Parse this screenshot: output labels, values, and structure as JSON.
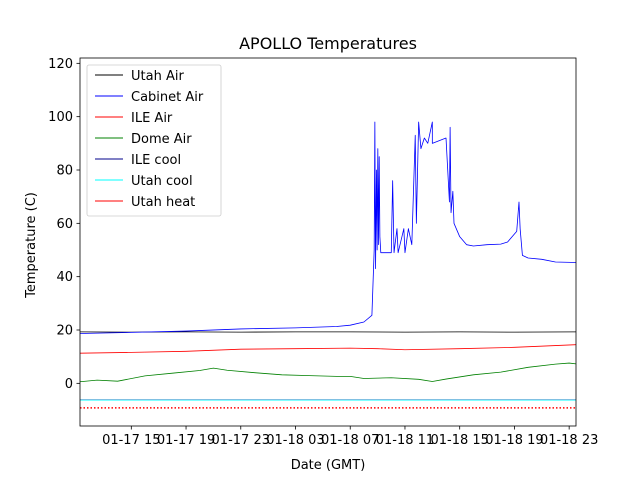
{
  "chart_data": {
    "type": "line",
    "title": "APOLLO Temperatures",
    "xlabel": "Date (GMT)",
    "ylabel": "Temperature (C)",
    "xlim": [
      "2023-01-17 11:15",
      "2023-01-18 23:30"
    ],
    "ylim": [
      -16,
      122
    ],
    "xticks": [
      {
        "t": "2023-01-17 15:00",
        "label": "01-17 15"
      },
      {
        "t": "2023-01-17 19:00",
        "label": "01-17 19"
      },
      {
        "t": "2023-01-17 23:00",
        "label": "01-17 23"
      },
      {
        "t": "2023-01-18 03:00",
        "label": "01-18 03"
      },
      {
        "t": "2023-01-18 07:00",
        "label": "01-18 07"
      },
      {
        "t": "2023-01-18 11:00",
        "label": "01-18 11"
      },
      {
        "t": "2023-01-18 15:00",
        "label": "01-18 15"
      },
      {
        "t": "2023-01-18 19:00",
        "label": "01-18 19"
      },
      {
        "t": "2023-01-18 23:00",
        "label": "01-18 23"
      }
    ],
    "yticks": [
      0,
      20,
      40,
      60,
      80,
      100,
      120
    ],
    "grid": false,
    "legend_position": "top-left",
    "series": [
      {
        "name": "Utah Air",
        "color": "#000000",
        "points": [
          [
            "2023-01-17 11:15",
            19.3
          ],
          [
            "2023-01-17 15:00",
            19.2
          ],
          [
            "2023-01-17 19:00",
            19.3
          ],
          [
            "2023-01-17 23:00",
            19.2
          ],
          [
            "2023-01-18 03:00",
            19.3
          ],
          [
            "2023-01-18 07:00",
            19.3
          ],
          [
            "2023-01-18 11:00",
            19.2
          ],
          [
            "2023-01-18 15:00",
            19.3
          ],
          [
            "2023-01-18 19:00",
            19.2
          ],
          [
            "2023-01-18 23:30",
            19.3
          ]
        ]
      },
      {
        "name": "Cabinet Air",
        "color": "#0000ff",
        "points": [
          [
            "2023-01-17 11:15",
            18.7
          ],
          [
            "2023-01-17 15:00",
            19.1
          ],
          [
            "2023-01-17 19:00",
            19.6
          ],
          [
            "2023-01-17 23:00",
            20.4
          ],
          [
            "2023-01-18 03:00",
            20.8
          ],
          [
            "2023-01-18 06:00",
            21.3
          ],
          [
            "2023-01-18 07:00",
            21.8
          ],
          [
            "2023-01-18 08:00",
            23.0
          ],
          [
            "2023-01-18 08:35",
            25.5
          ],
          [
            "2023-01-18 08:45",
            50.0
          ],
          [
            "2023-01-18 08:48",
            98.0
          ],
          [
            "2023-01-18 08:51",
            43.0
          ],
          [
            "2023-01-18 08:55",
            80.0
          ],
          [
            "2023-01-18 08:58",
            50.0
          ],
          [
            "2023-01-18 09:01",
            88.0
          ],
          [
            "2023-01-18 09:04",
            52.0
          ],
          [
            "2023-01-18 09:07",
            85.0
          ],
          [
            "2023-01-18 09:10",
            55.0
          ],
          [
            "2023-01-18 09:14",
            49.0
          ],
          [
            "2023-01-18 10:00",
            49.0
          ],
          [
            "2023-01-18 10:06",
            76.0
          ],
          [
            "2023-01-18 10:12",
            49.0
          ],
          [
            "2023-01-18 10:25",
            58.0
          ],
          [
            "2023-01-18 10:30",
            49.0
          ],
          [
            "2023-01-18 10:55",
            58.0
          ],
          [
            "2023-01-18 11:00",
            49.0
          ],
          [
            "2023-01-18 11:15",
            58.0
          ],
          [
            "2023-01-18 11:30",
            52.0
          ],
          [
            "2023-01-18 11:45",
            93.0
          ],
          [
            "2023-01-18 11:50",
            60.0
          ],
          [
            "2023-01-18 12:00",
            98.0
          ],
          [
            "2023-01-18 12:10",
            88.0
          ],
          [
            "2023-01-18 12:25",
            92.0
          ],
          [
            "2023-01-18 12:40",
            90.0
          ],
          [
            "2023-01-18 13:00",
            98.0
          ],
          [
            "2023-01-18 13:00",
            90.0
          ],
          [
            "2023-01-18 14:00",
            92.0
          ],
          [
            "2023-01-18 14:15",
            68.0
          ],
          [
            "2023-01-18 14:18",
            96.0
          ],
          [
            "2023-01-18 14:22",
            64.0
          ],
          [
            "2023-01-18 14:30",
            72.0
          ],
          [
            "2023-01-18 14:35",
            60.0
          ],
          [
            "2023-01-18 14:45",
            58.0
          ],
          [
            "2023-01-18 15:00",
            55.0
          ],
          [
            "2023-01-18 15:30",
            52.0
          ],
          [
            "2023-01-18 16:00",
            51.5
          ],
          [
            "2023-01-18 17:00",
            52.0
          ],
          [
            "2023-01-18 18:00",
            52.2
          ],
          [
            "2023-01-18 18:30",
            53.0
          ],
          [
            "2023-01-18 19:00",
            56.0
          ],
          [
            "2023-01-18 19:10",
            57.0
          ],
          [
            "2023-01-18 19:20",
            68.0
          ],
          [
            "2023-01-18 19:25",
            58.0
          ],
          [
            "2023-01-18 19:35",
            48.0
          ],
          [
            "2023-01-18 20:00",
            47.0
          ],
          [
            "2023-01-18 21:00",
            46.5
          ],
          [
            "2023-01-18 22:00",
            45.5
          ],
          [
            "2023-01-18 23:30",
            45.3
          ]
        ]
      },
      {
        "name": "ILE Air",
        "color": "#ff0000",
        "points": [
          [
            "2023-01-17 11:15",
            11.3
          ],
          [
            "2023-01-17 15:00",
            11.6
          ],
          [
            "2023-01-17 19:00",
            12.0
          ],
          [
            "2023-01-17 23:00",
            12.8
          ],
          [
            "2023-01-18 03:00",
            13.0
          ],
          [
            "2023-01-18 07:00",
            13.2
          ],
          [
            "2023-01-18 09:00",
            13.0
          ],
          [
            "2023-01-18 11:00",
            12.6
          ],
          [
            "2023-01-18 15:00",
            13.0
          ],
          [
            "2023-01-18 19:00",
            13.5
          ],
          [
            "2023-01-18 23:30",
            14.5
          ]
        ]
      },
      {
        "name": "Dome Air",
        "color": "#008000",
        "points": [
          [
            "2023-01-17 11:15",
            0.6
          ],
          [
            "2023-01-17 12:30",
            1.2
          ],
          [
            "2023-01-17 14:00",
            0.8
          ],
          [
            "2023-01-17 16:00",
            2.8
          ],
          [
            "2023-01-17 18:00",
            3.8
          ],
          [
            "2023-01-17 20:00",
            4.8
          ],
          [
            "2023-01-17 21:00",
            5.7
          ],
          [
            "2023-01-17 22:00",
            4.9
          ],
          [
            "2023-01-18 00:00",
            4.0
          ],
          [
            "2023-01-18 02:00",
            3.2
          ],
          [
            "2023-01-18 04:00",
            2.9
          ],
          [
            "2023-01-18 06:00",
            2.6
          ],
          [
            "2023-01-18 07:00",
            2.6
          ],
          [
            "2023-01-18 08:00",
            1.8
          ],
          [
            "2023-01-18 10:00",
            2.1
          ],
          [
            "2023-01-18 12:00",
            1.5
          ],
          [
            "2023-01-18 13:00",
            0.7
          ],
          [
            "2023-01-18 14:00",
            1.6
          ],
          [
            "2023-01-18 16:00",
            3.2
          ],
          [
            "2023-01-18 18:00",
            4.2
          ],
          [
            "2023-01-18 20:00",
            6.0
          ],
          [
            "2023-01-18 22:00",
            7.2
          ],
          [
            "2023-01-18 23:00",
            7.6
          ],
          [
            "2023-01-18 23:30",
            7.3
          ]
        ]
      },
      {
        "name": "ILE cool",
        "color": "#00008b",
        "points": [
          [
            "2023-01-17 11:15",
            -6.2
          ],
          [
            "2023-01-18 23:30",
            -6.2
          ]
        ]
      },
      {
        "name": "Utah cool",
        "color": "#00ffff",
        "points": [
          [
            "2023-01-17 11:15",
            -6.3
          ],
          [
            "2023-01-18 23:30",
            -6.3
          ]
        ]
      },
      {
        "name": "Utah heat",
        "color": "#ff0000",
        "points": [
          [
            "2023-01-17 11:15",
            -9.2
          ],
          [
            "2023-01-18 23:30",
            -9.2
          ]
        ]
      }
    ]
  }
}
